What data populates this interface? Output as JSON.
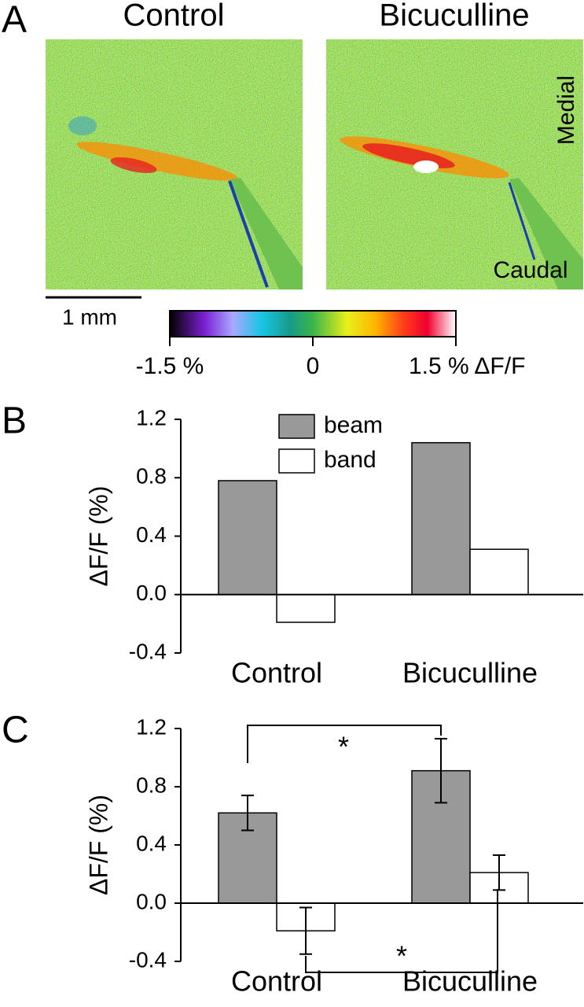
{
  "panel_a": {
    "label": "A",
    "titles": [
      "Control",
      "Bicuculline"
    ],
    "orientation": [
      "Medial",
      "Caudal"
    ],
    "scale_bar": "1 mm",
    "colorbar": {
      "lim": [
        -1.5,
        1.5
      ],
      "ticks": [
        {
          "value": -1.5,
          "label": "-1.5 %"
        },
        0,
        {
          "value": 1.5,
          "label": "1.5 % ΔF/F"
        }
      ]
    }
  },
  "chart_data": [
    {
      "type": "bar",
      "panel_label": "B",
      "ylabel": "ΔF/F (%)",
      "categories": [
        "Control",
        "Bicuculline"
      ],
      "series": [
        {
          "name": "beam",
          "color": "#999999",
          "values": [
            0.78,
            1.04
          ]
        },
        {
          "name": "band",
          "color": "#ffffff",
          "values": [
            -0.19,
            0.31
          ]
        }
      ],
      "ylim": [
        -0.4,
        1.2
      ],
      "yticks": [
        -0.4,
        {
          "value": 0,
          "label": "0.0"
        },
        0.4,
        0.8,
        1.2
      ],
      "legend": "top"
    },
    {
      "type": "bar",
      "panel_label": "C",
      "ylabel": "ΔF/F (%)",
      "categories": [
        "Control",
        "Bicuculline"
      ],
      "series": [
        {
          "name": "beam",
          "color": "#999999",
          "values": [
            0.62,
            0.91
          ],
          "errors": [
            0.12,
            0.22
          ]
        },
        {
          "name": "band",
          "color": "#ffffff",
          "values": [
            -0.19,
            0.21
          ],
          "errors": [
            0.16,
            0.12
          ]
        }
      ],
      "ylim": [
        -0.4,
        1.2
      ],
      "yticks": [
        -0.4,
        {
          "value": 0,
          "label": "0.0"
        },
        0.4,
        0.8,
        1.2
      ],
      "annotations": [
        "*",
        "*"
      ]
    }
  ]
}
